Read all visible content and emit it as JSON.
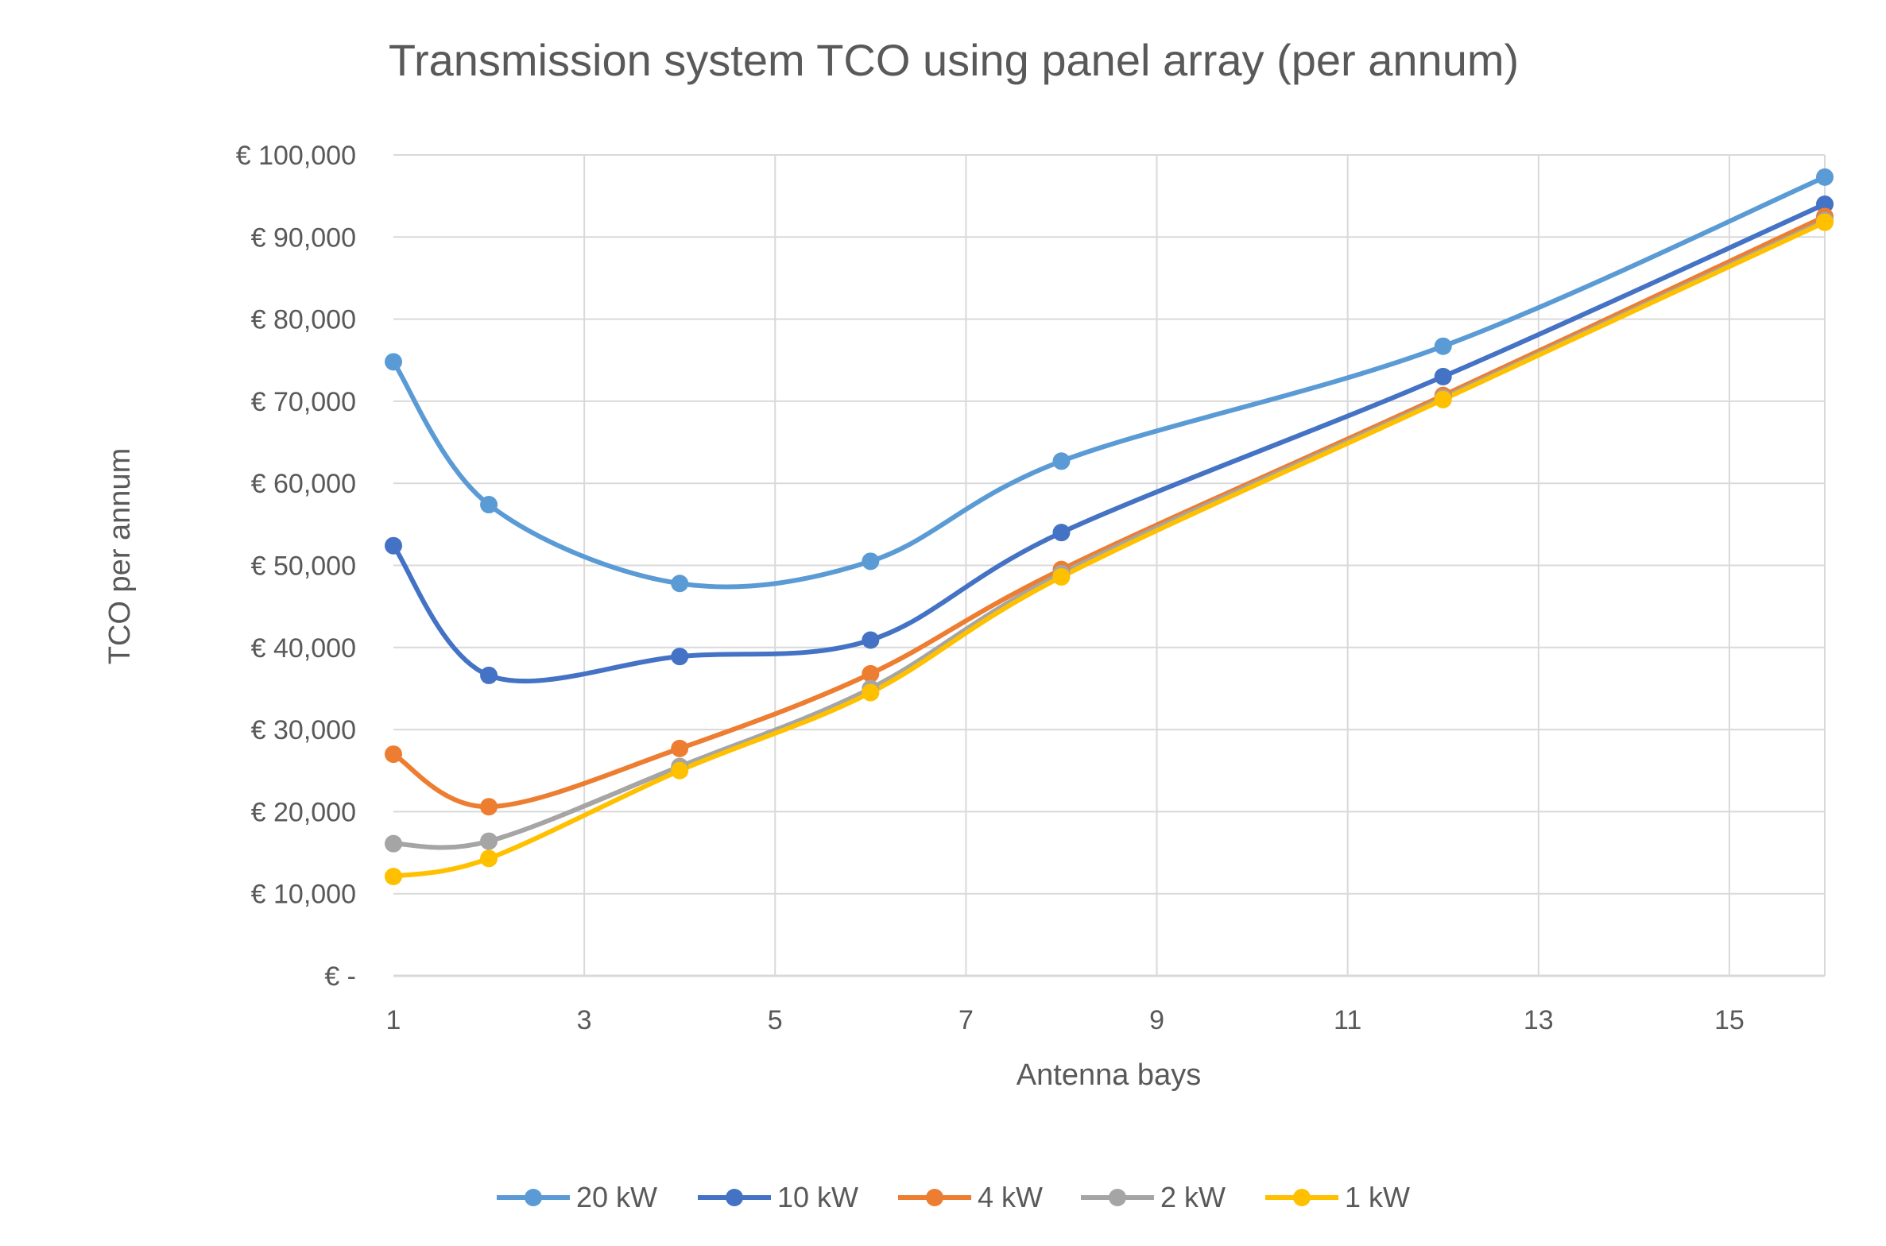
{
  "chart_data": {
    "type": "line",
    "title": "Transmission system TCO using panel array (per annum)",
    "xlabel": "Antenna bays",
    "ylabel": "TCO per annum",
    "xlim": [
      1,
      16
    ],
    "ylim": [
      0,
      100000
    ],
    "x_ticks": [
      1,
      3,
      5,
      7,
      9,
      11,
      13,
      15
    ],
    "y_ticks": [
      0,
      10000,
      20000,
      30000,
      40000,
      50000,
      60000,
      70000,
      80000,
      90000,
      100000
    ],
    "y_tick_labels": [
      "€ -",
      "€ 10,000",
      "€ 20,000",
      "€ 30,000",
      "€ 40,000",
      "€ 50,000",
      "€ 60,000",
      "€ 70,000",
      "€ 80,000",
      "€ 90,000",
      "€ 100,000"
    ],
    "grid": true,
    "legend_position": "bottom",
    "x": [
      1,
      2,
      4,
      6,
      8,
      12,
      16
    ],
    "series": [
      {
        "name": "20 kW",
        "color": "#5b9bd5",
        "values": [
          74800,
          57400,
          47800,
          50500,
          62700,
          76700,
          97300
        ]
      },
      {
        "name": "10 kW",
        "color": "#4472c4",
        "values": [
          52400,
          36600,
          38900,
          40900,
          54000,
          73000,
          94000
        ]
      },
      {
        "name": "4 kW",
        "color": "#ed7d31",
        "values": [
          27000,
          20600,
          27700,
          36800,
          49500,
          70700,
          92500
        ]
      },
      {
        "name": "2 kW",
        "color": "#a5a5a5",
        "values": [
          16100,
          16400,
          25500,
          35000,
          49000,
          70400,
          92000
        ]
      },
      {
        "name": "1 kW",
        "color": "#ffc000",
        "values": [
          12100,
          14300,
          25000,
          34500,
          48600,
          70200,
          91800
        ]
      }
    ]
  }
}
